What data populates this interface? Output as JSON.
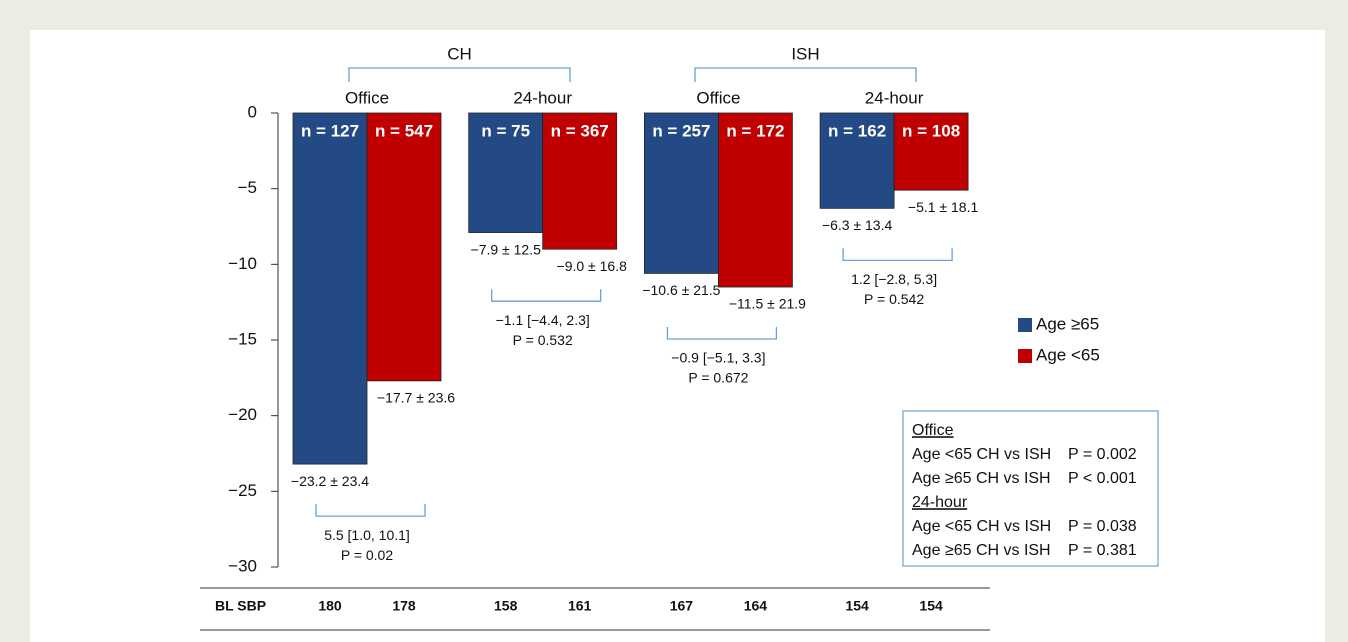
{
  "chart_data": {
    "type": "bar",
    "groups": [
      {
        "label": "CH"
      },
      {
        "label": "ISH"
      }
    ],
    "categories": [
      "Office",
      "24-hour",
      "Office",
      "24-hour"
    ],
    "series": [
      {
        "name": "Age ≥65",
        "color": "#234a85",
        "values": [
          -23.2,
          -7.9,
          -10.6,
          -6.3
        ],
        "value_labels": [
          "−23.2 ± 23.4",
          "−7.9 ± 12.5",
          "−10.6 ± 21.5",
          "−6.3 ± 13.4"
        ],
        "n_labels": [
          "n = 127",
          "n = 75",
          "n = 257",
          "n = 162"
        ]
      },
      {
        "name": "Age <65",
        "color": "#c00000",
        "values": [
          -17.7,
          -9.0,
          -11.5,
          -5.1
        ],
        "value_labels": [
          "−17.7 ± 23.6",
          "−9.0 ± 16.8",
          "−11.5 ± 21.9",
          "−5.1 ± 18.1"
        ],
        "n_labels": [
          "n = 547",
          "n = 367",
          "n = 172",
          "n = 108"
        ]
      }
    ],
    "comparisons": [
      {
        "difference": "5.5 [1.0, 10.1]",
        "p": "P = 0.02"
      },
      {
        "difference": "−1.1 [−4.4, 2.3]",
        "p": "P = 0.532"
      },
      {
        "difference": "−0.9 [−5.1, 3.3]",
        "p": "P = 0.672"
      },
      {
        "difference": "1.2 [−2.8, 5.3]",
        "p": "P = 0.542"
      }
    ],
    "ylim": [
      0,
      -30
    ],
    "yticks": [
      0,
      {
        "value": -5,
        "label": "−5"
      },
      {
        "value": -10,
        "label": "−10"
      },
      {
        "value": -15,
        "label": "−15"
      },
      {
        "value": -20,
        "label": "−20"
      },
      {
        "value": -25,
        "label": "−25"
      },
      {
        "value": -30,
        "label": "−30"
      }
    ],
    "baseline": {
      "label": "BL SBP",
      "values": [
        180,
        178,
        158,
        161,
        167,
        164,
        154,
        154
      ]
    },
    "notes": [
      {
        "title": "Office",
        "rows": [
          [
            "Age <65 CH vs ISH",
            "P = 0.002"
          ],
          [
            "Age ≥65 CH vs ISH",
            "P < 0.001"
          ]
        ]
      },
      {
        "title": "24-hour",
        "rows": [
          [
            "Age <65 CH vs ISH",
            "P = 0.038"
          ],
          [
            "Age ≥65 CH vs ISH",
            "P = 0.381"
          ]
        ]
      }
    ]
  }
}
